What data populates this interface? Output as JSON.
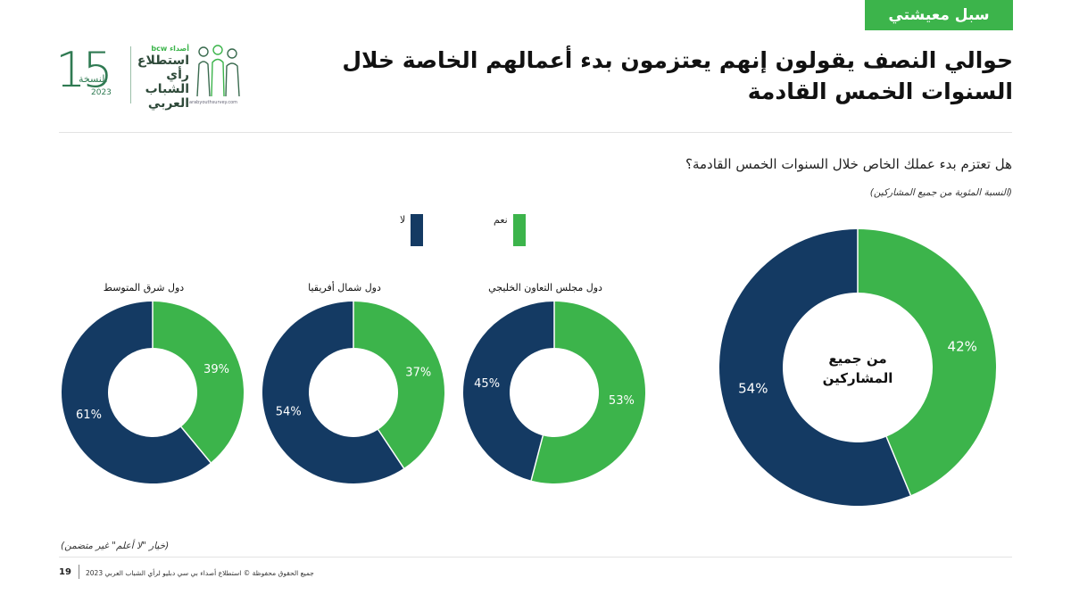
{
  "header": {
    "tag": "سبل معيشتي",
    "title": "حوالي النصف يقولون إنهم يعتزمون بدء أعمالهم الخاصة خلال السنوات الخمس القادمة"
  },
  "logo": {
    "number": "15",
    "edition": "النسخة",
    "year": "2023",
    "brand_top": "أصداء bcw",
    "brand_line1": "استطلاع",
    "brand_line2": "رأي الشباب",
    "brand_line3": "العربي",
    "url": "arabyouthsurvey.com"
  },
  "question": "هل تعتزم بدء عملك الخاص خلال السنوات الخمس القادمة؟",
  "subnote": "(النسبة المئوية من جميع المشاركين)",
  "legend": {
    "yes": "نعم",
    "no": "لا"
  },
  "colors": {
    "yes": "#3cb44b",
    "no": "#143a63",
    "tag": "#3cb44b"
  },
  "chart_data": [
    {
      "type": "pie",
      "name": "all",
      "label": "من جميع المشاركين",
      "label_line1": "من جميع",
      "label_line2": "المشاركين",
      "series": [
        {
          "name": "نعم",
          "value": 42
        },
        {
          "name": "لا",
          "value": 54
        }
      ]
    },
    {
      "type": "pie",
      "name": "gcc",
      "label": "دول مجلس التعاون الخليجي",
      "series": [
        {
          "name": "نعم",
          "value": 53
        },
        {
          "name": "لا",
          "value": 45
        }
      ]
    },
    {
      "type": "pie",
      "name": "north-africa",
      "label": "دول شمال أفريقيا",
      "series": [
        {
          "name": "نعم",
          "value": 37
        },
        {
          "name": "لا",
          "value": 54
        }
      ]
    },
    {
      "type": "pie",
      "name": "levant",
      "label": "دول شرق المتوسط",
      "series": [
        {
          "name": "نعم",
          "value": 39
        },
        {
          "name": "لا",
          "value": 61
        }
      ]
    }
  ],
  "footnote": "(خيار \"لا أعلم\" غير متضمن)",
  "footer": {
    "page_number": "19",
    "copyright": "جميع الحقوق محفوظة © استطلاع أصداء بي سي دبليو لرأي الشباب العربي 2023"
  }
}
